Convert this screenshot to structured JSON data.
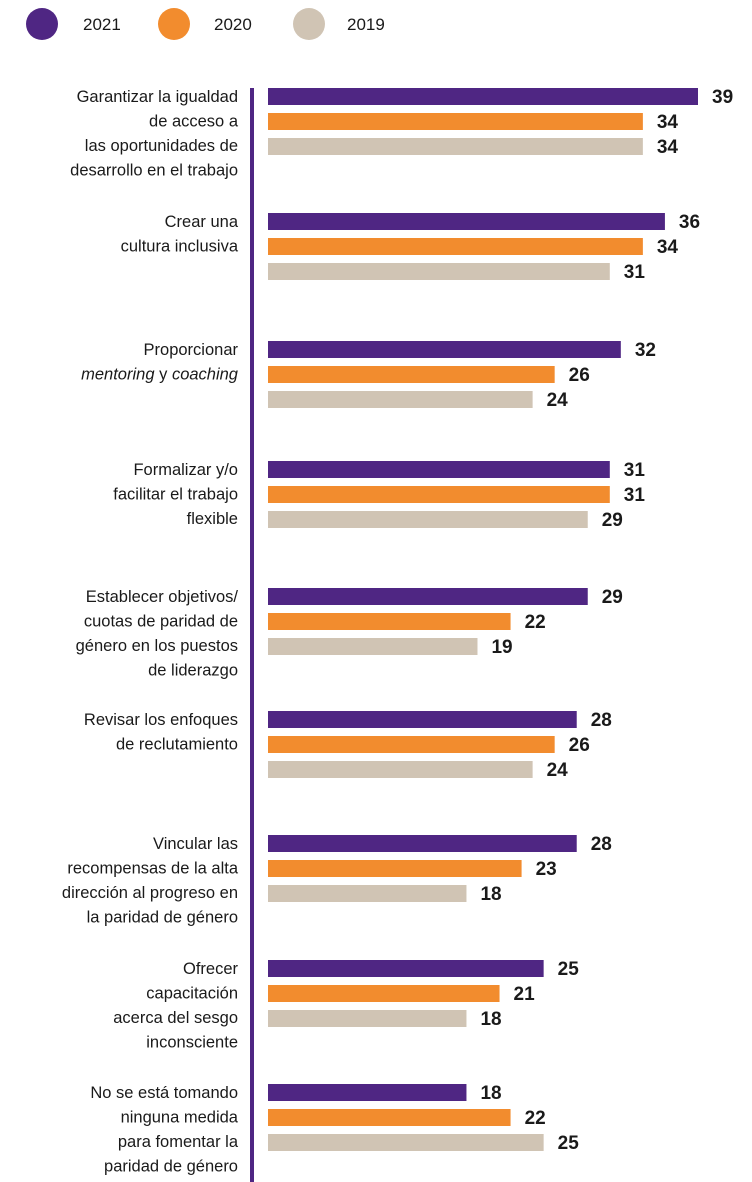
{
  "chart_data": {
    "type": "bar",
    "orientation": "horizontal",
    "colors": {
      "2021": "#4f2683",
      "2020": "#f28c2e",
      "2019": "#d0c4b4",
      "axis": "#4f2683"
    },
    "legend": {
      "placement": "top-left",
      "entries": [
        "2021",
        "2020",
        "2019"
      ]
    },
    "grid": false,
    "categories": [
      {
        "lines": [
          {
            "text": "Garantizar la igualdad"
          },
          {
            "text": "de acceso a"
          },
          {
            "text": "las oportunidades de"
          },
          {
            "text": "desarrollo en el trabajo"
          }
        ]
      },
      {
        "lines": [
          {
            "text": "Crear una"
          },
          {
            "text": "cultura inclusiva"
          }
        ]
      },
      {
        "lines": [
          {
            "text": "Proporcionar"
          },
          {
            "text": "mentoring y coaching",
            "italic_words": [
              "mentoring",
              "coaching"
            ]
          }
        ]
      },
      {
        "lines": [
          {
            "text": "Formalizar y/o"
          },
          {
            "text": "facilitar el trabajo"
          },
          {
            "text": "flexible"
          }
        ]
      },
      {
        "lines": [
          {
            "text": "Establecer objetivos/"
          },
          {
            "text": "cuotas de paridad de"
          },
          {
            "text": "género en los puestos"
          },
          {
            "text": "de liderazgo"
          }
        ]
      },
      {
        "lines": [
          {
            "text": "Revisar los enfoques"
          },
          {
            "text": "de reclutamiento"
          }
        ]
      },
      {
        "lines": [
          {
            "text": "Vincular las"
          },
          {
            "text": "recompensas de la alta"
          },
          {
            "text": "dirección al progreso en"
          },
          {
            "text": "la paridad de género"
          }
        ]
      },
      {
        "lines": [
          {
            "text": "Ofrecer"
          },
          {
            "text": "capacitación"
          },
          {
            "text": "acerca del sesgo"
          },
          {
            "text": "inconsciente"
          }
        ]
      },
      {
        "lines": [
          {
            "text": "No se está tomando"
          },
          {
            "text": "ninguna medida"
          },
          {
            "text": "para fomentar la"
          },
          {
            "text": "paridad de género"
          }
        ]
      }
    ],
    "series": [
      {
        "name": "2021",
        "values": [
          39,
          36,
          32,
          31,
          29,
          28,
          28,
          25,
          18
        ]
      },
      {
        "name": "2020",
        "values": [
          34,
          34,
          26,
          31,
          22,
          26,
          23,
          21,
          22
        ]
      },
      {
        "name": "2019",
        "values": [
          34,
          31,
          24,
          29,
          19,
          24,
          18,
          18,
          25
        ]
      }
    ],
    "xlim": [
      0,
      39
    ]
  }
}
